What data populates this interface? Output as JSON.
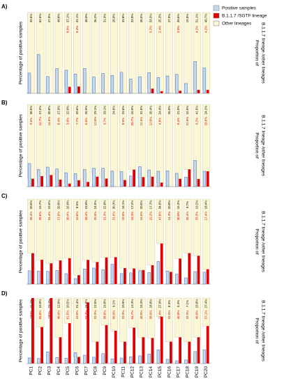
{
  "chart_data": [
    {
      "type": "bar",
      "title": "A)",
      "ylim": [
        0,
        130
      ],
      "y2lim": [
        0,
        100
      ],
      "ylabel": "Percentage of positive samples",
      "y2label": [
        "Proportion of",
        "B.1.1.7 lineage /other lineages"
      ],
      "legend": "upper right",
      "series": [
        {
          "name": "Positive samples",
          "color": "#c5d9f1",
          "values": [
            32.6,
            62.5,
            27.0,
            40.0,
            37.1,
            31.1,
            40.0,
            26.2,
            31.9,
            28.8,
            33.8,
            23.0,
            26.6,
            33.3,
            25.3,
            27.9,
            30.6,
            15.8,
            51.1,
            40.7
          ],
          "value_labels": [
            "32.6%",
            "62.5%",
            "27.0%",
            "40.0%",
            "37.1%",
            "31.1%",
            "40.0%",
            "26.2%",
            "31.9%",
            "28.8%",
            "33.8%",
            "23.0%",
            "26.6%",
            "33.3%",
            "25.3%",
            "27.9%",
            "30.6%",
            "15.8%",
            "51.1%",
            "40.7%"
          ]
        },
        {
          "name": "B.1.1.7 /SGTF lineage",
          "color": "#e00000",
          "axis": "y2",
          "values": [
            0,
            0,
            0,
            0,
            8.0,
            8.3,
            0,
            0,
            0,
            0,
            0,
            0,
            0,
            5.7,
            2.4,
            0,
            3.0,
            0,
            4.2,
            4.2
          ],
          "value_labels": [
            null,
            null,
            null,
            null,
            "8.0%",
            "8.3%",
            null,
            null,
            null,
            null,
            null,
            null,
            null,
            "5.7%",
            "2.4%",
            null,
            "3.0%",
            null,
            "4.2%",
            "4.2%"
          ]
        },
        {
          "name": "Other lineages",
          "color": "#fbf6d5",
          "axis": "y2",
          "values": [
            100,
            100,
            100,
            100,
            92.0,
            91.7,
            100,
            100,
            100,
            100,
            100,
            100,
            100,
            94.3,
            97.6,
            100,
            97.0,
            100,
            95.8,
            95.8
          ]
        }
      ]
    },
    {
      "type": "bar",
      "title": "B)",
      "ylim": [
        0,
        130
      ],
      "y2lim": [
        0,
        100
      ],
      "ylabel": "Percentage of positive samples",
      "y2label": [
        "Proportion of",
        "B.1.1.7 lineage /other lineages"
      ],
      "series": [
        {
          "color": "#c5d9f1",
          "values": [
            36.5,
            27.2,
            30.8,
            27.9,
            22.0,
            20.6,
            26.9,
            29.1,
            29.1,
            24.6,
            23.6,
            16.9,
            31.5,
            26.4,
            24.4,
            25.0,
            21.0,
            15.0,
            41.5,
            24.2
          ],
          "value_labels": [
            "36.5%",
            "27.2%",
            "30.8%",
            "27.9%",
            "22.0%",
            "20.6%",
            "26.9%",
            "29.1%",
            "29.1%",
            "24.6%",
            "23.6%",
            "16.9%",
            "31.5%",
            "26.4%",
            "24.4%",
            "25.0%",
            "21.0%",
            "15.0%",
            "41.5%",
            "24.2%"
          ]
        },
        {
          "color": "#e00000",
          "axis": "y2",
          "values": [
            9.5,
            12.7,
            14.0,
            8.4,
            3.6,
            7.7,
            5.6,
            12.0,
            9.7,
            0,
            8.0,
            20.7,
            11.5,
            12.0,
            4.8,
            0,
            9.4,
            21.0,
            9.2,
            18.6
          ],
          "value_labels": [
            "9.5%",
            "12.7%",
            "14.0%",
            "8.4%",
            "3.6%",
            "7.7%",
            "5.6%",
            "12.0%",
            "9.7%",
            null,
            "8.0%",
            "20.7%",
            "11.5%",
            "12.0%",
            "4.8%",
            null,
            "9.4%",
            "21.0%",
            "9.2%",
            "18.6%"
          ]
        },
        {
          "color": "#fbf6d5",
          "axis": "y2",
          "values": [
            90.5,
            87.3,
            86.0,
            91.6,
            96.4,
            92.3,
            94.4,
            88.0,
            90.3,
            100,
            92.0,
            79.3,
            88.5,
            88.0,
            95.2,
            100,
            90.6,
            79.0,
            90.8,
            81.4
          ]
        }
      ]
    },
    {
      "type": "bar",
      "title": "C)",
      "ylim": [
        0,
        130
      ],
      "y2lim": [
        0,
        100
      ],
      "ylabel": "Percentage of positive samples",
      "y2label": [
        "Proportion of",
        "B.1.1.7 lineage /other lineages"
      ],
      "series": [
        {
          "color": "#c5d9f1",
          "values": [
            20.5,
            19.7,
            19.5,
            20.8,
            16.0,
            8.5,
            23.0,
            24.5,
            22.0,
            30.3,
            16.1,
            17.2,
            20.5,
            17.7,
            34.6,
            20.0,
            15.3,
            9.7,
            19.2,
            18.4
          ],
          "value_labels": [
            "20.5%",
            "19.7%",
            "19.5%",
            "20.8%",
            "16.0%",
            "8.5%",
            "23.0%",
            "24.5%",
            "22.0%",
            "30.3%",
            "16.1%",
            "17.2%",
            "20.5%",
            "17.7%",
            "34.6%",
            "20.0%",
            "15.3%",
            "9.7%",
            "19.2%",
            "18.4%"
          ]
        },
        {
          "color": "#e00000",
          "axis": "y2",
          "values": [
            36.4,
            28.6,
            24.4,
            27.8,
            30.4,
            10.5,
            28.4,
            25.9,
            31.3,
            31.6,
            18.8,
            18.3,
            16.5,
            22.2,
            47.8,
            14.3,
            30.0,
            36.4,
            33.3,
            17.4
          ],
          "value_labels": [
            "36.4%",
            "28.6%",
            "24.4%",
            "27.8%",
            "30.4%",
            "10.5%",
            "28.4%",
            "25.9%",
            "31.3%",
            "31.6%",
            "18.8%",
            "18.3%",
            "16.5%",
            "22.2%",
            "47.8%",
            "14.3%",
            "30.0%",
            "36.4%",
            "33.3%",
            "17.4%"
          ]
        },
        {
          "color": "#fbf6d5",
          "axis": "y2",
          "values": [
            63.6,
            71.4,
            75.6,
            72.2,
            69.6,
            89.5,
            71.6,
            74.1,
            68.7,
            68.4,
            81.2,
            81.7,
            83.5,
            77.8,
            52.2,
            85.7,
            70.0,
            63.6,
            66.7,
            82.6
          ]
        }
      ]
    },
    {
      "type": "bar",
      "title": "D)",
      "ylim": [
        0,
        130
      ],
      "y2lim": [
        0,
        100
      ],
      "ylabel": "Percentage of positive samples",
      "y2label": [
        "Proportion of",
        "B.1.1.7 lineage /other lineages"
      ],
      "categories": [
        "PC1",
        "PC2",
        "PC3",
        "PC4",
        "PC5",
        "PC6",
        "PC7",
        "PC8",
        "PC9",
        "PC10",
        "PC11",
        "PC12",
        "PC13",
        "PC14",
        "PC15",
        "PC16",
        "PC17",
        "PC18",
        "PC19",
        "PC20"
      ],
      "series": [
        {
          "color": "#c5d9f1",
          "values": [
            11.1,
            10.0,
            23.1,
            12.0,
            10.5,
            21.4,
            16.5,
            12.5,
            19.8,
            9.1,
            10.9,
            13.3,
            15.3,
            18.8,
            27.0,
            8.3,
            5.4,
            7.1,
            23.8,
            27.4
          ],
          "value_labels": [
            "11.1%",
            "10.0%",
            "23.1%",
            "12.0%",
            "10.5%",
            "21.4%",
            "16.5%",
            "12.5%",
            "19.8%",
            "9.1%",
            "10.9%",
            "13.3%",
            "15.3%",
            "18.8%",
            "27.0%",
            "8.3%",
            "5.4%",
            "7.1%",
            "23.8%",
            "27.4%"
          ]
        },
        {
          "color": "#e00000",
          "axis": "y2",
          "values": [
            100,
            55.6,
            100,
            40.0,
            61.5,
            10.0,
            93.3,
            33.3,
            58.6,
            50.0,
            33.3,
            54.7,
            40.0,
            38.9,
            71.4,
            33.3,
            40.0,
            33.3,
            40.0,
            57.1
          ],
          "value_labels": [
            "100%",
            "55.6%",
            "100%",
            "40.0%",
            "61.5%",
            "10.0%",
            "93.3%",
            "33.3%",
            "58.6%",
            "50.0%",
            "33.3%",
            "54.7%",
            "40.0%",
            "38.9%",
            "71.4%",
            "33.3%",
            "40.0%",
            "33.3%",
            "40.0%",
            "57.1%"
          ]
        },
        {
          "color": "#fbf6d5",
          "axis": "y2",
          "values": [
            0,
            44.4,
            0,
            60.0,
            38.5,
            90.0,
            6.7,
            66.7,
            41.4,
            50.0,
            66.7,
            45.3,
            60.0,
            61.1,
            28.6,
            66.7,
            60.0,
            66.7,
            60.0,
            42.9
          ]
        }
      ]
    }
  ]
}
